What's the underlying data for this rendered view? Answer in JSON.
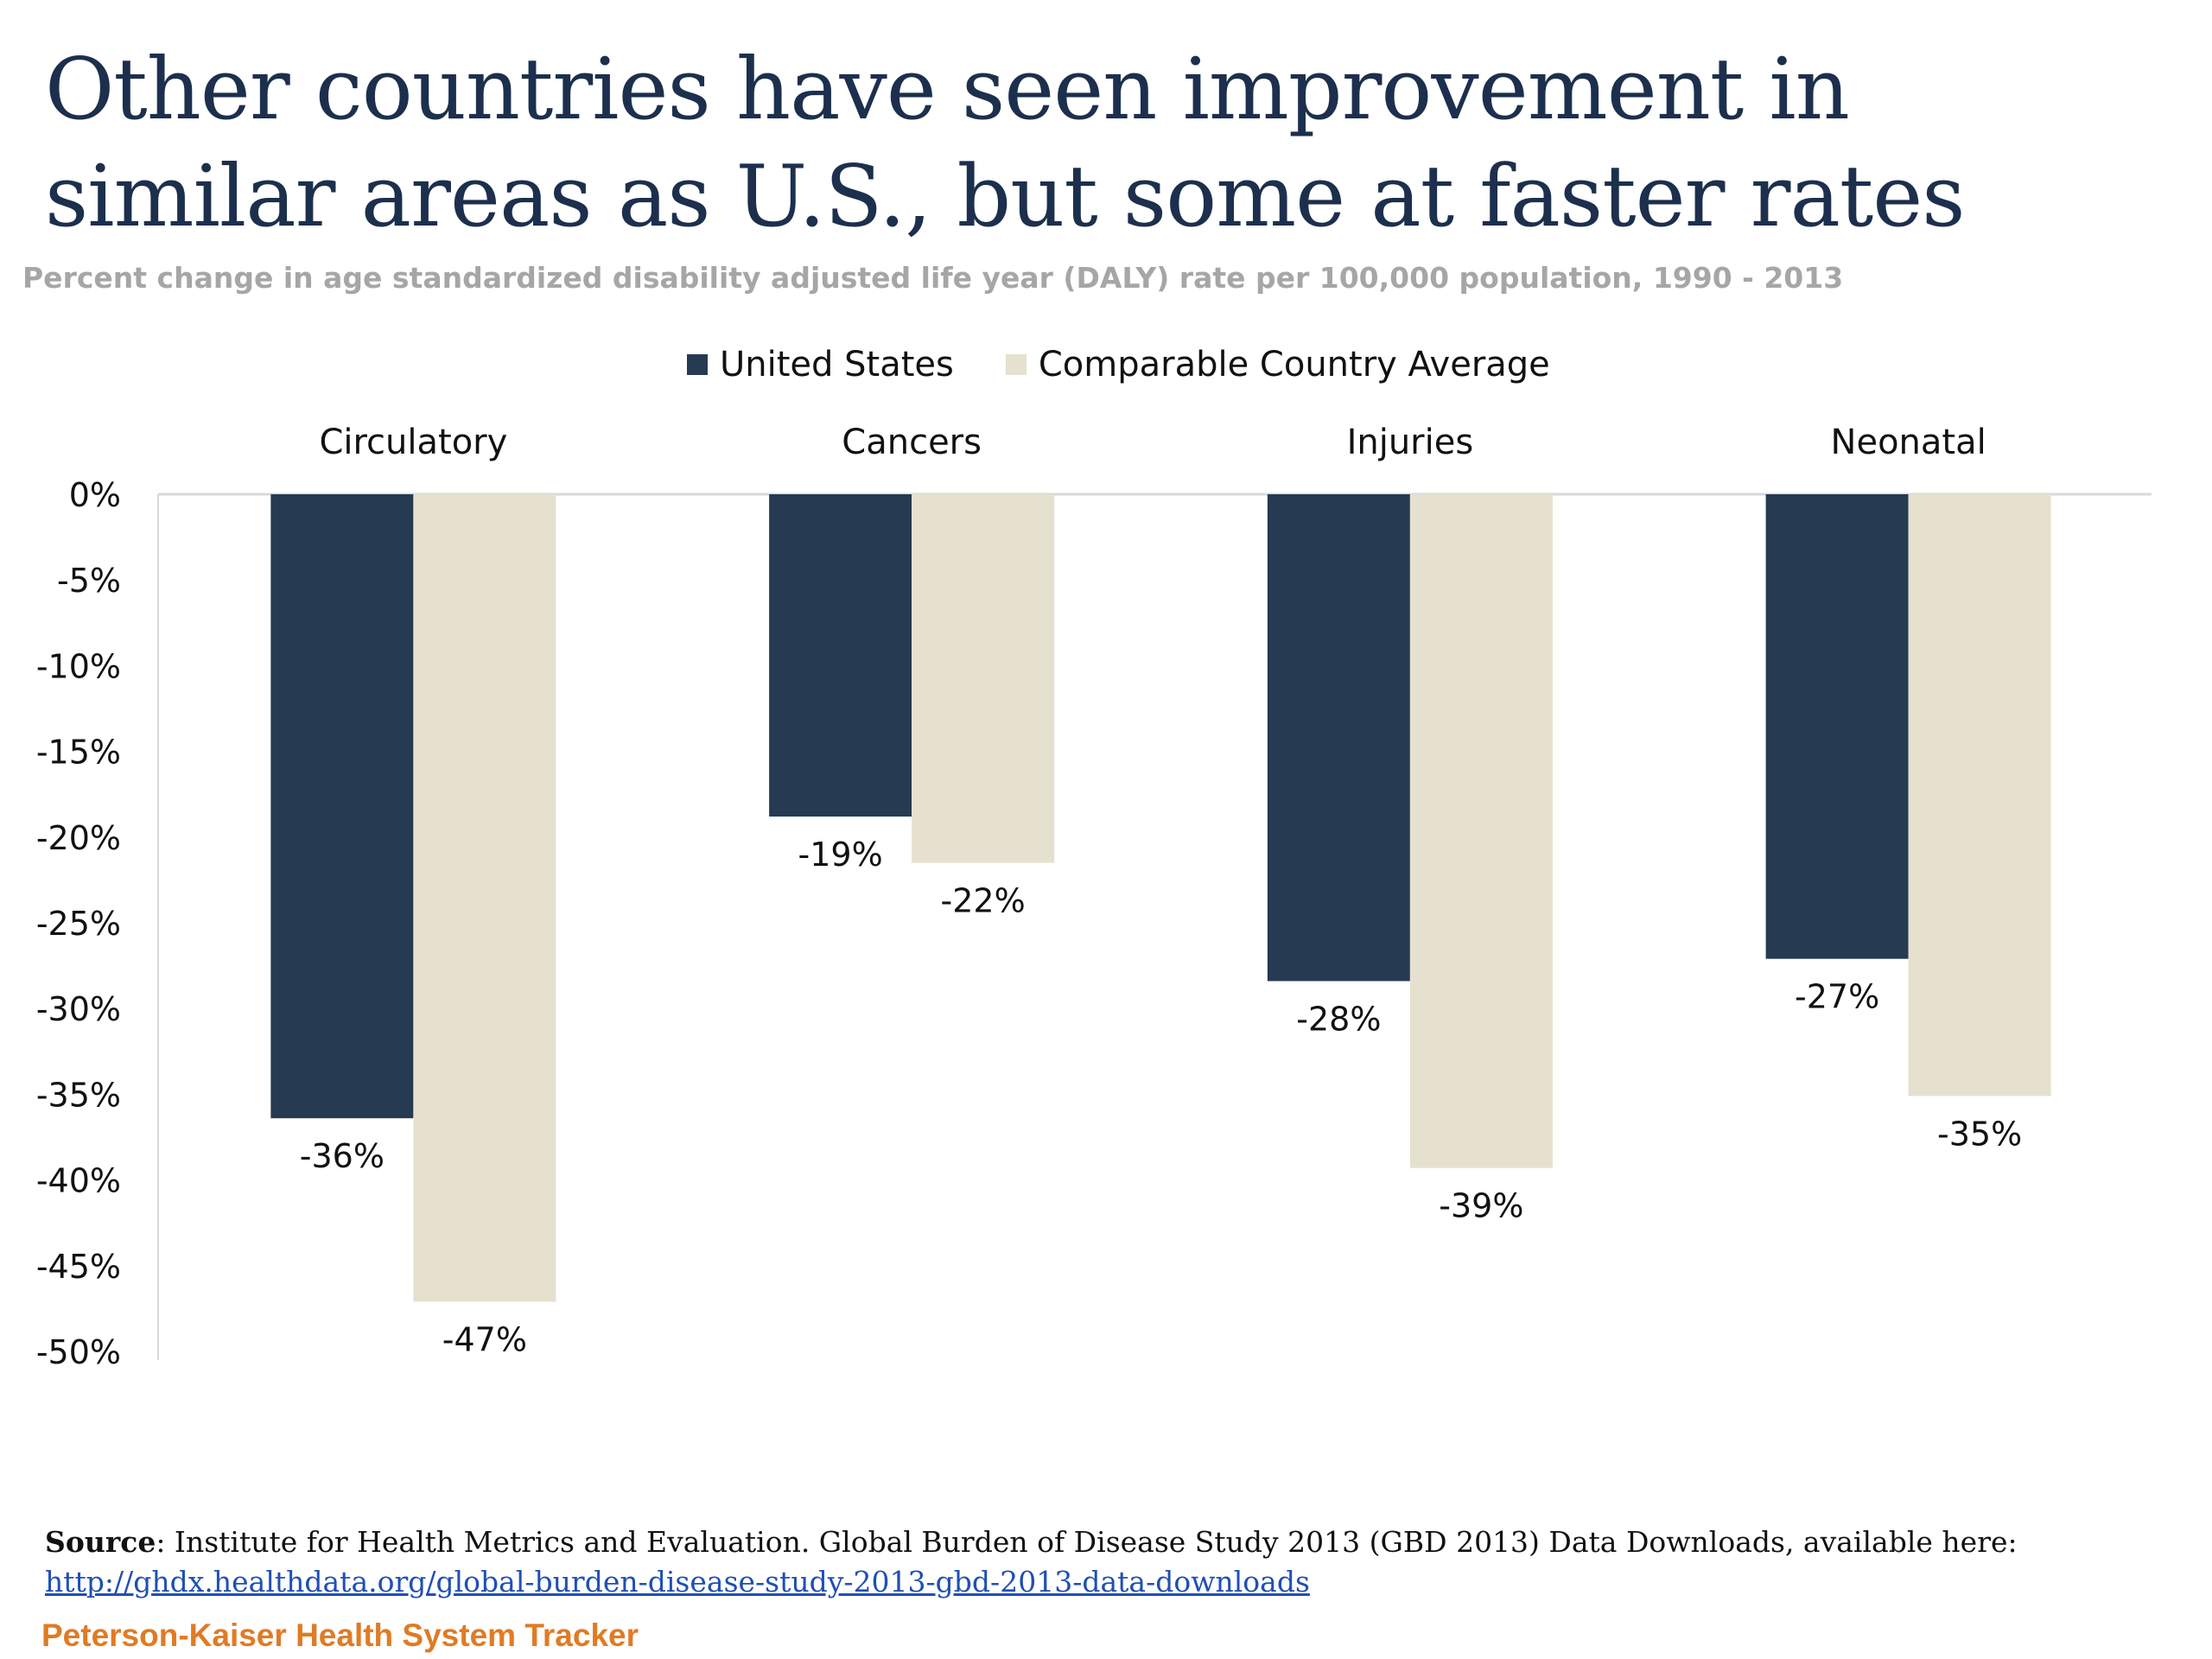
{
  "title": "Other countries have seen improvement in similar areas as U.S., but some at faster rates",
  "subtitle": "Percent change in age standardized disability adjusted life year (DALY) rate per 100,000 population, 1990 - 2013",
  "source_label": "Source",
  "source_text": ": Institute for Health Metrics and Evaluation. Global Burden of Disease Study 2013 (GBD 2013) Data Downloads, available here:",
  "source_link": "http://ghdx.healthdata.org/global-burden-disease-study-2013-gbd-2013-data-downloads",
  "brand": "Peterson-Kaiser Health System Tracker",
  "colors": {
    "united_states": "#263a52",
    "comparable": "#e6e0cf"
  },
  "chart_data": {
    "type": "bar",
    "categories": [
      "Circulatory",
      "Cancers",
      "Injuries",
      "Neonatal"
    ],
    "series": [
      {
        "name": "United States",
        "values": [
          -36.4,
          -18.8,
          -28.4,
          -27.1
        ],
        "labels": [
          "-36%",
          "-19%",
          "-28%",
          "-27%"
        ]
      },
      {
        "name": "Comparable Country Average",
        "values": [
          -47.1,
          -21.5,
          -39.3,
          -35.1
        ],
        "labels": [
          "-47%",
          "-22%",
          "-39%",
          "-35%"
        ]
      }
    ],
    "ylim": [
      -50,
      0
    ],
    "yticks": [
      0,
      -5,
      -10,
      -15,
      -20,
      -25,
      -30,
      -35,
      -40,
      -45,
      -50
    ],
    "ytick_labels": [
      "0%",
      "-5%",
      "-10%",
      "-15%",
      "-20%",
      "-25%",
      "-30%",
      "-35%",
      "-40%",
      "-45%",
      "-50%"
    ],
    "category_axis_position": "top",
    "legend_position": "top",
    "grid": false
  }
}
